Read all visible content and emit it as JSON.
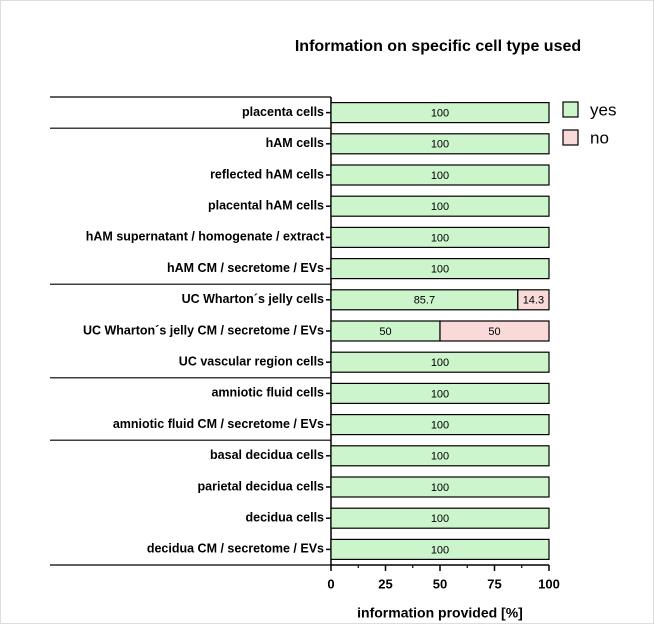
{
  "chart_data": {
    "type": "stacked-barh",
    "title": "Information on specific cell type used",
    "x_label": "information provided [%]",
    "categories": [
      "placenta cells",
      "hAM cells",
      "reflected hAM cells",
      "placental hAM cells",
      "hAM supernatant / homogenate / extract",
      "hAM CM / secretome / EVs",
      "UC Wharton´s jelly cells",
      "UC Wharton´s jelly CM / secretome / EVs",
      "UC vascular region cells",
      "amniotic fluid cells",
      "amniotic fluid CM / secretome / EVs",
      "basal decidua cells",
      "parietal decidua cells",
      "decidua cells",
      "decidua CM / secretome / EVs"
    ],
    "series": [
      {
        "name": "yes",
        "color": "#ccf5cc",
        "values": [
          100,
          100,
          100,
          100,
          100,
          100,
          85.7,
          50,
          100,
          100,
          100,
          100,
          100,
          100,
          100
        ]
      },
      {
        "name": "no",
        "color": "#fad9d9",
        "values": [
          0,
          0,
          0,
          0,
          0,
          0,
          14.3,
          50,
          0,
          0,
          0,
          0,
          0,
          0,
          0
        ]
      }
    ],
    "xlim": [
      0,
      100
    ],
    "xticks": [
      0,
      25,
      50,
      75,
      100
    ],
    "legend": "upper right"
  }
}
